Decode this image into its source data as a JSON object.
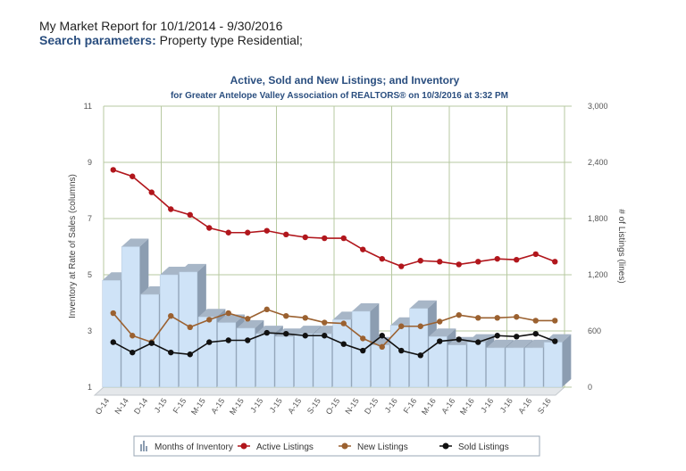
{
  "report": {
    "title": "My Market Report for 10/1/2014 - 9/30/2016",
    "search_label": "Search parameters:",
    "search_value": " Property type Residential;"
  },
  "colors": {
    "bar_front": "#cfe3f7",
    "bar_side": "#8c9db1",
    "bar_top": "#a7b6c7",
    "active": "#b1161c",
    "new": "#9b6130",
    "sold": "#111111",
    "grid": "#b7c9a1"
  },
  "chart_data": {
    "type": "bar+line",
    "title": "Active, Sold and New Listings; and Inventory",
    "subtitle": "for Greater Antelope Valley Association of REALTORS® on 10/3/2016 at 3:32 PM",
    "ylabel_left": "Inventory at Rate of Sales (columns)",
    "ylabel_right": "# of Listings (lines)",
    "ylim_left": [
      1,
      11
    ],
    "ylim_right": [
      0,
      3000
    ],
    "yticks_left": [
      "1",
      "3",
      "5",
      "7",
      "9",
      "11"
    ],
    "yticks_right": [
      "0",
      "600",
      "1,200",
      "1,800",
      "2,400",
      "3,000"
    ],
    "categories": [
      "O-14",
      "N-14",
      "D-14",
      "J-15",
      "F-15",
      "M-15",
      "A-15",
      "M-15",
      "J-15",
      "J-15",
      "A-15",
      "S-15",
      "O-15",
      "N-15",
      "D-15",
      "J-16",
      "F-16",
      "M-16",
      "A-16",
      "M-16",
      "J-16",
      "J-16",
      "A-16",
      "S-16"
    ],
    "series": [
      {
        "name": "Months of Inventory",
        "type": "bar",
        "axis": "left",
        "values": [
          4.8,
          6.0,
          4.3,
          5.0,
          5.1,
          3.5,
          3.3,
          3.1,
          2.9,
          2.8,
          2.9,
          2.9,
          3.4,
          3.7,
          2.5,
          3.2,
          3.8,
          2.8,
          2.5,
          2.6,
          2.4,
          2.4,
          2.4,
          2.6
        ]
      },
      {
        "name": "Active Listings",
        "type": "line",
        "axis": "right",
        "values": [
          2320,
          2250,
          2080,
          1900,
          1840,
          1700,
          1650,
          1650,
          1670,
          1630,
          1600,
          1590,
          1590,
          1470,
          1370,
          1290,
          1350,
          1340,
          1310,
          1340,
          1370,
          1360,
          1420,
          1340
        ]
      },
      {
        "name": "New Listings",
        "type": "line",
        "axis": "right",
        "values": [
          790,
          550,
          480,
          760,
          640,
          720,
          790,
          730,
          830,
          760,
          740,
          690,
          680,
          520,
          430,
          650,
          650,
          700,
          770,
          740,
          740,
          750,
          710,
          710
        ]
      },
      {
        "name": "Sold Listings",
        "type": "line",
        "axis": "right",
        "values": [
          480,
          370,
          470,
          370,
          350,
          480,
          500,
          500,
          580,
          570,
          550,
          550,
          460,
          390,
          550,
          390,
          340,
          490,
          510,
          480,
          550,
          540,
          570,
          490
        ]
      }
    ]
  }
}
